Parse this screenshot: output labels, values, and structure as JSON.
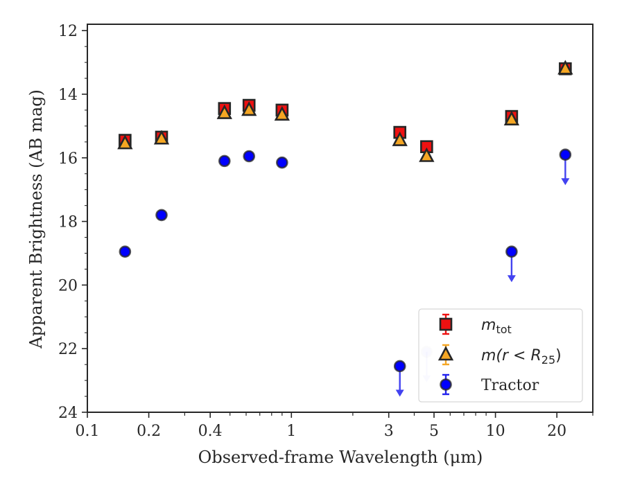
{
  "chart_data": {
    "type": "scatter",
    "title": "",
    "xlabel": "Observed-frame Wavelength (μm)",
    "ylabel": "Apparent Brightness (AB mag)",
    "xscale": "log",
    "xlim": [
      0.1,
      30
    ],
    "ylim": [
      24,
      11.8
    ],
    "y_inverted": true,
    "xticks": [
      0.1,
      0.2,
      0.4,
      1,
      3,
      5,
      10,
      20
    ],
    "xtick_labels": [
      "0.1",
      "0.2",
      "0.4",
      "1",
      "3",
      "5",
      "10",
      "20"
    ],
    "yticks": [
      12,
      14,
      16,
      18,
      20,
      22,
      24
    ],
    "ytick_labels": [
      "12",
      "14",
      "16",
      "18",
      "20",
      "22",
      "24"
    ],
    "grid": false,
    "legend_position": "lower-right",
    "series": [
      {
        "name": "m_tot",
        "marker": "square",
        "color": "#ee1111",
        "edge": "#262626",
        "x": [
          0.153,
          0.231,
          0.47,
          0.62,
          0.9,
          3.4,
          4.6,
          12.0,
          22.0
        ],
        "y": [
          15.45,
          15.35,
          14.45,
          14.35,
          14.5,
          15.2,
          15.65,
          14.7,
          13.2
        ]
      },
      {
        "name": "m(r<R25)",
        "marker": "triangle",
        "color": "#f5a623",
        "edge": "#262626",
        "x": [
          0.153,
          0.231,
          0.47,
          0.62,
          0.9,
          3.4,
          4.6,
          12.0,
          22.0
        ],
        "y": [
          15.55,
          15.4,
          14.6,
          14.5,
          14.65,
          15.45,
          15.95,
          14.8,
          13.2
        ]
      },
      {
        "name": "Tractor",
        "marker": "circle",
        "color": "#0000ff",
        "edge": "#262626",
        "x": [
          0.153,
          0.231,
          0.47,
          0.62,
          0.9,
          3.4,
          4.6,
          12.0,
          22.0
        ],
        "y": [
          18.95,
          17.8,
          16.1,
          15.95,
          16.15,
          22.55,
          22.1,
          18.95,
          15.9
        ],
        "upper_limit": [
          false,
          false,
          false,
          false,
          false,
          true,
          true,
          true,
          true
        ],
        "faded": [
          false,
          false,
          false,
          false,
          false,
          false,
          true,
          false,
          false
        ]
      }
    ],
    "legend": {
      "entries": [
        {
          "label_base": "m",
          "label_sub": "tot",
          "series": 0
        },
        {
          "label_text": "m(r < R",
          "label_sub": "25",
          "label_tail": ")",
          "series": 1
        },
        {
          "label_text": "Tractor",
          "series": 2
        }
      ]
    }
  }
}
